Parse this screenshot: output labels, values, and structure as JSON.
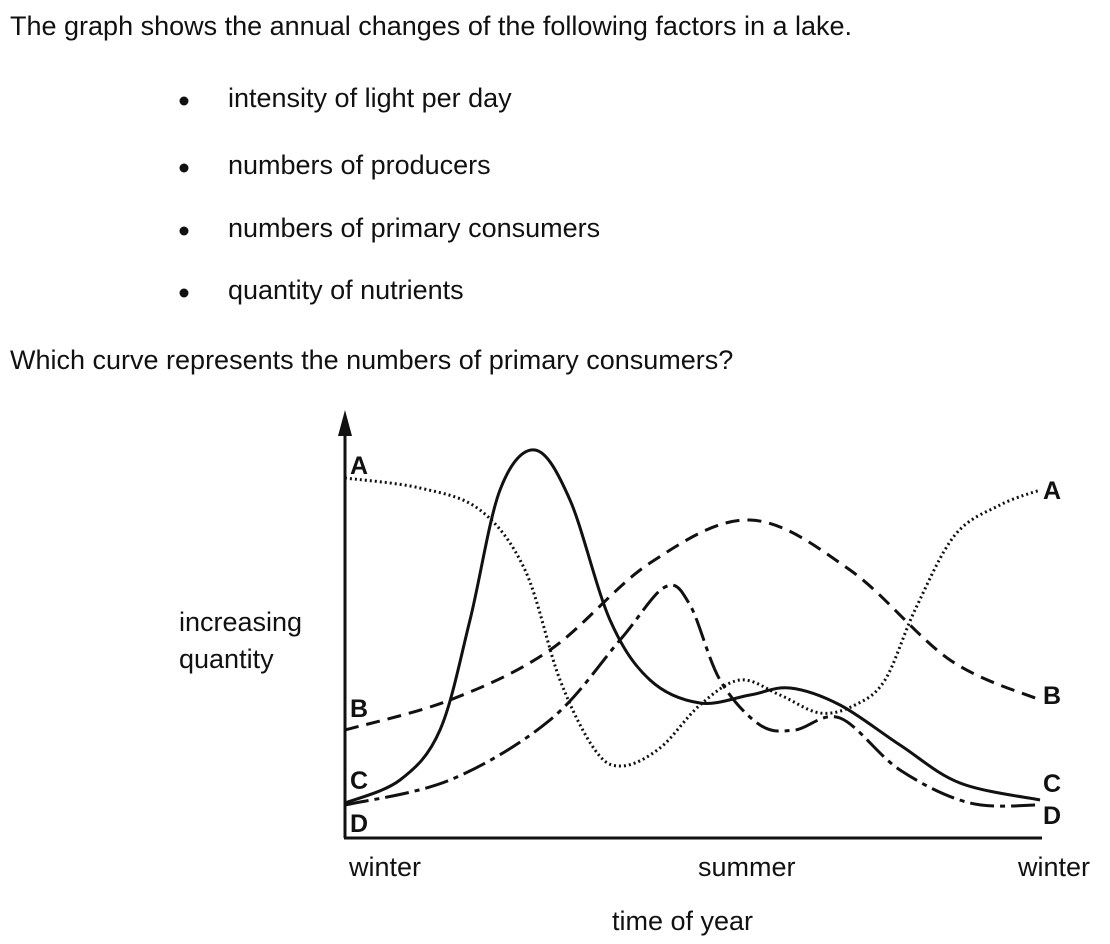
{
  "question": {
    "intro": "The graph shows the annual changes of the following factors in a lake.",
    "bullets": [
      "intensity of light per day",
      "numbers of producers",
      "numbers of primary consumers",
      "quantity of nutrients"
    ],
    "prompt": "Which curve represents the numbers of primary consumers?"
  },
  "graph": {
    "y_label_lines": [
      "increasing",
      "quantity"
    ],
    "x_labels": [
      "winter",
      "summer",
      "winter"
    ],
    "x_title": "time of year",
    "curves": [
      {
        "label": "A"
      },
      {
        "label": "B"
      },
      {
        "label": "C"
      },
      {
        "label": "D"
      }
    ]
  }
}
